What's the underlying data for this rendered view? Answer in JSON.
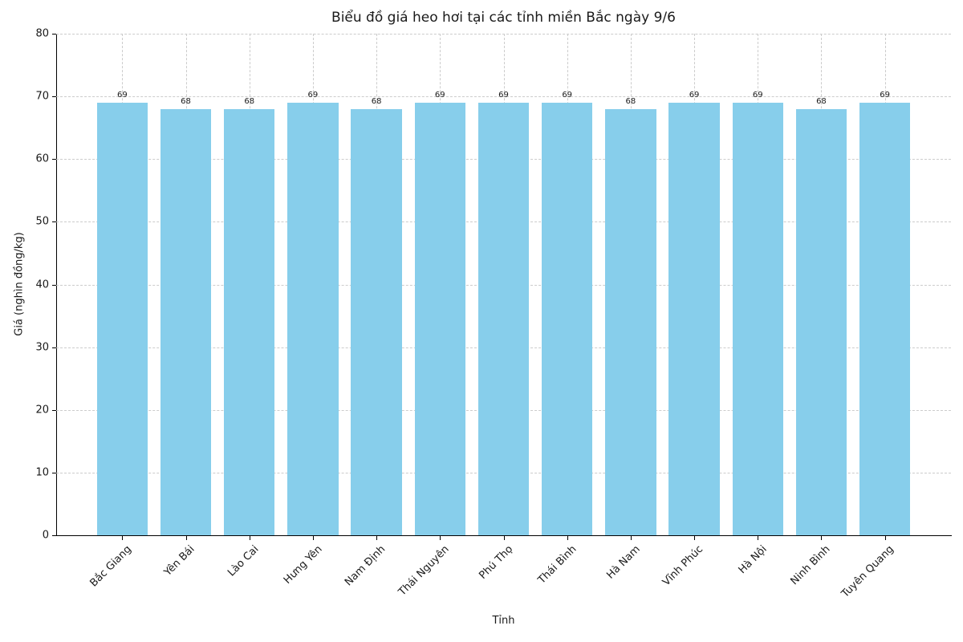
{
  "chart_data": {
    "type": "bar",
    "title": "Biểu đồ giá heo hơi tại các tỉnh miền Bắc ngày 9/6",
    "xlabel": "Tỉnh",
    "ylabel": "Giá (nghìn đồng/kg)",
    "categories": [
      "Bắc Giang",
      "Yên Bái",
      "Lào Cai",
      "Hưng Yên",
      "Nam Định",
      "Thái Nguyên",
      "Phú Thọ",
      "Thái Bình",
      "Hà Nam",
      "Vĩnh Phúc",
      "Hà Nội",
      "Ninh Bình",
      "Tuyên Quang"
    ],
    "values": [
      69,
      68,
      68,
      69,
      68,
      69,
      69,
      69,
      68,
      69,
      69,
      68,
      69
    ],
    "ylim": [
      0,
      80
    ],
    "yticks": [
      0,
      10,
      20,
      30,
      40,
      50,
      60,
      70,
      80
    ],
    "bar_color": "#87CEEB",
    "grid": "dashed",
    "legend": "none"
  }
}
